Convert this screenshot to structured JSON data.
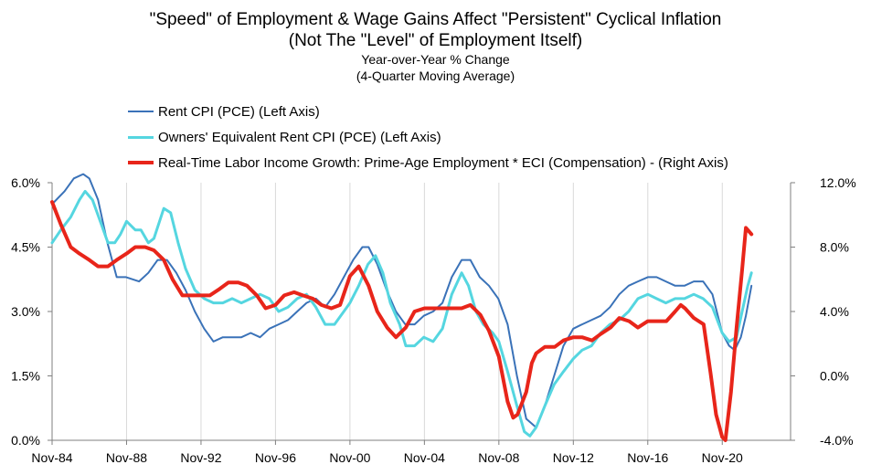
{
  "chart_data": {
    "type": "line",
    "title": "\"Speed\" of Employment & Wage Gains Affect \"Persistent\" Cyclical Inflation",
    "subtitle": "(Not The \"Level\" of Employment Itself)",
    "ylabel_note": "Year-over-Year % Change",
    "smoothing_note": "(4-Quarter Moving Average)",
    "x_ticks": [
      "Nov-84",
      "Nov-88",
      "Nov-92",
      "Nov-96",
      "Nov-00",
      "Nov-04",
      "Nov-08",
      "Nov-12",
      "Nov-16",
      "Nov-20"
    ],
    "xlim": [
      1984.83,
      2024.5
    ],
    "y_left": {
      "ticks": [
        "0.0%",
        "1.5%",
        "3.0%",
        "4.5%",
        "6.0%"
      ],
      "values": [
        0,
        1.5,
        3.0,
        4.5,
        6.0
      ],
      "ylim": [
        0,
        6.0
      ]
    },
    "y_right": {
      "ticks": [
        "-4.0%",
        "0.0%",
        "4.0%",
        "8.0%",
        "12.0%"
      ],
      "values": [
        -4,
        0,
        4,
        8,
        12
      ],
      "ylim": [
        -4,
        12
      ]
    },
    "series": [
      {
        "name": "Rent CPI (PCE) (Left Axis)",
        "axis": "left",
        "color": "#3a72b8",
        "points": [
          [
            1984.83,
            5.5
          ],
          [
            1985.5,
            5.8
          ],
          [
            1986.0,
            6.1
          ],
          [
            1986.5,
            6.2
          ],
          [
            1986.83,
            6.1
          ],
          [
            1987.3,
            5.6
          ],
          [
            1987.8,
            4.6
          ],
          [
            1988.3,
            3.8
          ],
          [
            1988.8,
            3.8
          ],
          [
            1989.5,
            3.7
          ],
          [
            1990.0,
            3.9
          ],
          [
            1990.5,
            4.2
          ],
          [
            1991.0,
            4.2
          ],
          [
            1991.5,
            3.9
          ],
          [
            1992.0,
            3.5
          ],
          [
            1992.5,
            3.0
          ],
          [
            1993.0,
            2.6
          ],
          [
            1993.5,
            2.3
          ],
          [
            1994.0,
            2.4
          ],
          [
            1994.5,
            2.4
          ],
          [
            1995.0,
            2.4
          ],
          [
            1995.5,
            2.5
          ],
          [
            1996.0,
            2.4
          ],
          [
            1996.5,
            2.6
          ],
          [
            1997.0,
            2.7
          ],
          [
            1997.5,
            2.8
          ],
          [
            1998.0,
            3.0
          ],
          [
            1998.5,
            3.2
          ],
          [
            1999.0,
            3.3
          ],
          [
            1999.5,
            3.1
          ],
          [
            2000.0,
            3.4
          ],
          [
            2000.5,
            3.8
          ],
          [
            2001.0,
            4.2
          ],
          [
            2001.5,
            4.5
          ],
          [
            2001.83,
            4.5
          ],
          [
            2002.3,
            4.1
          ],
          [
            2002.8,
            3.5
          ],
          [
            2003.3,
            3.0
          ],
          [
            2003.8,
            2.7
          ],
          [
            2004.3,
            2.7
          ],
          [
            2004.8,
            2.9
          ],
          [
            2005.3,
            3.0
          ],
          [
            2005.8,
            3.2
          ],
          [
            2006.3,
            3.8
          ],
          [
            2006.83,
            4.2
          ],
          [
            2007.3,
            4.2
          ],
          [
            2007.8,
            3.8
          ],
          [
            2008.3,
            3.6
          ],
          [
            2008.8,
            3.3
          ],
          [
            2009.3,
            2.7
          ],
          [
            2009.8,
            1.5
          ],
          [
            2010.3,
            0.5
          ],
          [
            2010.83,
            0.3
          ],
          [
            2011.3,
            0.8
          ],
          [
            2011.8,
            1.5
          ],
          [
            2012.3,
            2.2
          ],
          [
            2012.83,
            2.6
          ],
          [
            2013.3,
            2.7
          ],
          [
            2013.8,
            2.8
          ],
          [
            2014.3,
            2.9
          ],
          [
            2014.8,
            3.1
          ],
          [
            2015.3,
            3.4
          ],
          [
            2015.8,
            3.6
          ],
          [
            2016.3,
            3.7
          ],
          [
            2016.83,
            3.8
          ],
          [
            2017.3,
            3.8
          ],
          [
            2017.8,
            3.7
          ],
          [
            2018.3,
            3.6
          ],
          [
            2018.8,
            3.6
          ],
          [
            2019.3,
            3.7
          ],
          [
            2019.8,
            3.7
          ],
          [
            2020.3,
            3.4
          ],
          [
            2020.83,
            2.5
          ],
          [
            2021.2,
            2.2
          ],
          [
            2021.5,
            2.1
          ],
          [
            2021.83,
            2.4
          ],
          [
            2022.1,
            2.9
          ],
          [
            2022.4,
            3.6
          ]
        ]
      },
      {
        "name": "Owners' Equivalent Rent CPI (PCE) (Left Axis)",
        "axis": "left",
        "color": "#55d6e0",
        "points": [
          [
            1984.83,
            4.6
          ],
          [
            1985.3,
            4.9
          ],
          [
            1985.83,
            5.2
          ],
          [
            1986.3,
            5.6
          ],
          [
            1986.6,
            5.8
          ],
          [
            1987.0,
            5.6
          ],
          [
            1987.5,
            5.0
          ],
          [
            1987.83,
            4.6
          ],
          [
            1988.2,
            4.6
          ],
          [
            1988.5,
            4.8
          ],
          [
            1988.83,
            5.1
          ],
          [
            1989.3,
            4.9
          ],
          [
            1989.6,
            4.9
          ],
          [
            1990.0,
            4.6
          ],
          [
            1990.3,
            4.7
          ],
          [
            1990.83,
            5.4
          ],
          [
            1991.2,
            5.3
          ],
          [
            1991.6,
            4.6
          ],
          [
            1992.0,
            4.0
          ],
          [
            1992.5,
            3.5
          ],
          [
            1993.0,
            3.3
          ],
          [
            1993.5,
            3.2
          ],
          [
            1994.0,
            3.2
          ],
          [
            1994.5,
            3.3
          ],
          [
            1995.0,
            3.2
          ],
          [
            1995.5,
            3.3
          ],
          [
            1996.0,
            3.4
          ],
          [
            1996.5,
            3.3
          ],
          [
            1997.0,
            3.0
          ],
          [
            1997.5,
            3.1
          ],
          [
            1998.0,
            3.3
          ],
          [
            1998.5,
            3.4
          ],
          [
            1999.0,
            3.1
          ],
          [
            1999.5,
            2.7
          ],
          [
            2000.0,
            2.7
          ],
          [
            2000.5,
            3.0
          ],
          [
            2000.83,
            3.2
          ],
          [
            2001.3,
            3.6
          ],
          [
            2001.8,
            4.1
          ],
          [
            2002.2,
            4.3
          ],
          [
            2002.6,
            3.9
          ],
          [
            2003.0,
            3.2
          ],
          [
            2003.5,
            2.7
          ],
          [
            2003.83,
            2.2
          ],
          [
            2004.3,
            2.2
          ],
          [
            2004.8,
            2.4
          ],
          [
            2005.3,
            2.3
          ],
          [
            2005.8,
            2.6
          ],
          [
            2006.3,
            3.4
          ],
          [
            2006.83,
            3.9
          ],
          [
            2007.2,
            3.6
          ],
          [
            2007.6,
            3.0
          ],
          [
            2008.0,
            2.7
          ],
          [
            2008.5,
            2.5
          ],
          [
            2008.83,
            2.3
          ],
          [
            2009.3,
            1.6
          ],
          [
            2009.8,
            0.8
          ],
          [
            2010.2,
            0.2
          ],
          [
            2010.5,
            0.1
          ],
          [
            2010.83,
            0.3
          ],
          [
            2011.3,
            0.8
          ],
          [
            2011.8,
            1.3
          ],
          [
            2012.3,
            1.6
          ],
          [
            2012.83,
            1.9
          ],
          [
            2013.3,
            2.1
          ],
          [
            2013.8,
            2.2
          ],
          [
            2014.3,
            2.5
          ],
          [
            2014.8,
            2.7
          ],
          [
            2015.3,
            2.8
          ],
          [
            2015.8,
            3.0
          ],
          [
            2016.3,
            3.3
          ],
          [
            2016.83,
            3.4
          ],
          [
            2017.3,
            3.3
          ],
          [
            2017.8,
            3.2
          ],
          [
            2018.3,
            3.3
          ],
          [
            2018.8,
            3.3
          ],
          [
            2019.3,
            3.4
          ],
          [
            2019.8,
            3.3
          ],
          [
            2020.3,
            3.1
          ],
          [
            2020.83,
            2.5
          ],
          [
            2021.2,
            2.3
          ],
          [
            2021.6,
            2.4
          ],
          [
            2021.9,
            3.0
          ],
          [
            2022.2,
            3.6
          ],
          [
            2022.4,
            3.9
          ]
        ]
      },
      {
        "name": "Real-Time Labor Income Growth: Prime-Age Employment * ECI (Compensation) - (Right Axis)",
        "axis": "right",
        "color": "#e8251a",
        "points": [
          [
            1984.83,
            10.8
          ],
          [
            1985.3,
            9.4
          ],
          [
            1985.83,
            8.0
          ],
          [
            1986.3,
            7.6
          ],
          [
            1986.83,
            7.2
          ],
          [
            1987.3,
            6.8
          ],
          [
            1987.83,
            6.8
          ],
          [
            1988.3,
            7.2
          ],
          [
            1988.83,
            7.6
          ],
          [
            1989.3,
            8.0
          ],
          [
            1989.83,
            8.0
          ],
          [
            1990.3,
            7.8
          ],
          [
            1990.83,
            7.2
          ],
          [
            1991.3,
            6.0
          ],
          [
            1991.83,
            5.0
          ],
          [
            1992.3,
            5.0
          ],
          [
            1992.83,
            5.0
          ],
          [
            1993.3,
            5.0
          ],
          [
            1993.83,
            5.4
          ],
          [
            1994.3,
            5.8
          ],
          [
            1994.83,
            5.8
          ],
          [
            1995.3,
            5.6
          ],
          [
            1995.83,
            5.0
          ],
          [
            1996.3,
            4.2
          ],
          [
            1996.83,
            4.4
          ],
          [
            1997.3,
            5.0
          ],
          [
            1997.83,
            5.2
          ],
          [
            1998.3,
            5.0
          ],
          [
            1998.83,
            4.8
          ],
          [
            1999.3,
            4.4
          ],
          [
            1999.83,
            4.2
          ],
          [
            2000.3,
            4.4
          ],
          [
            2000.83,
            6.2
          ],
          [
            2001.3,
            6.8
          ],
          [
            2001.83,
            5.6
          ],
          [
            2002.3,
            4.0
          ],
          [
            2002.83,
            3.0
          ],
          [
            2003.3,
            2.4
          ],
          [
            2003.83,
            3.0
          ],
          [
            2004.3,
            4.0
          ],
          [
            2004.83,
            4.2
          ],
          [
            2005.3,
            4.2
          ],
          [
            2005.83,
            4.2
          ],
          [
            2006.3,
            4.2
          ],
          [
            2006.83,
            4.2
          ],
          [
            2007.3,
            4.4
          ],
          [
            2007.83,
            3.8
          ],
          [
            2008.3,
            2.8
          ],
          [
            2008.83,
            1.2
          ],
          [
            2009.3,
            -1.6
          ],
          [
            2009.6,
            -2.6
          ],
          [
            2009.83,
            -2.4
          ],
          [
            2010.3,
            -1.0
          ],
          [
            2010.6,
            0.8
          ],
          [
            2010.83,
            1.4
          ],
          [
            2011.3,
            1.8
          ],
          [
            2011.83,
            1.8
          ],
          [
            2012.3,
            2.2
          ],
          [
            2012.83,
            2.4
          ],
          [
            2013.3,
            2.4
          ],
          [
            2013.83,
            2.2
          ],
          [
            2014.3,
            2.6
          ],
          [
            2014.83,
            3.0
          ],
          [
            2015.3,
            3.6
          ],
          [
            2015.83,
            3.4
          ],
          [
            2016.3,
            3.0
          ],
          [
            2016.83,
            3.4
          ],
          [
            2017.3,
            3.4
          ],
          [
            2017.83,
            3.4
          ],
          [
            2018.3,
            4.0
          ],
          [
            2018.6,
            4.4
          ],
          [
            2018.83,
            4.2
          ],
          [
            2019.3,
            3.6
          ],
          [
            2019.83,
            3.2
          ],
          [
            2020.2,
            0.2
          ],
          [
            2020.5,
            -2.4
          ],
          [
            2020.83,
            -3.8
          ],
          [
            2021.0,
            -4.0
          ],
          [
            2021.3,
            -1.0
          ],
          [
            2021.6,
            3.0
          ],
          [
            2021.9,
            6.6
          ],
          [
            2022.1,
            9.2
          ],
          [
            2022.4,
            8.8
          ]
        ]
      }
    ],
    "grid": "vertical",
    "legend_position": "top-left"
  }
}
